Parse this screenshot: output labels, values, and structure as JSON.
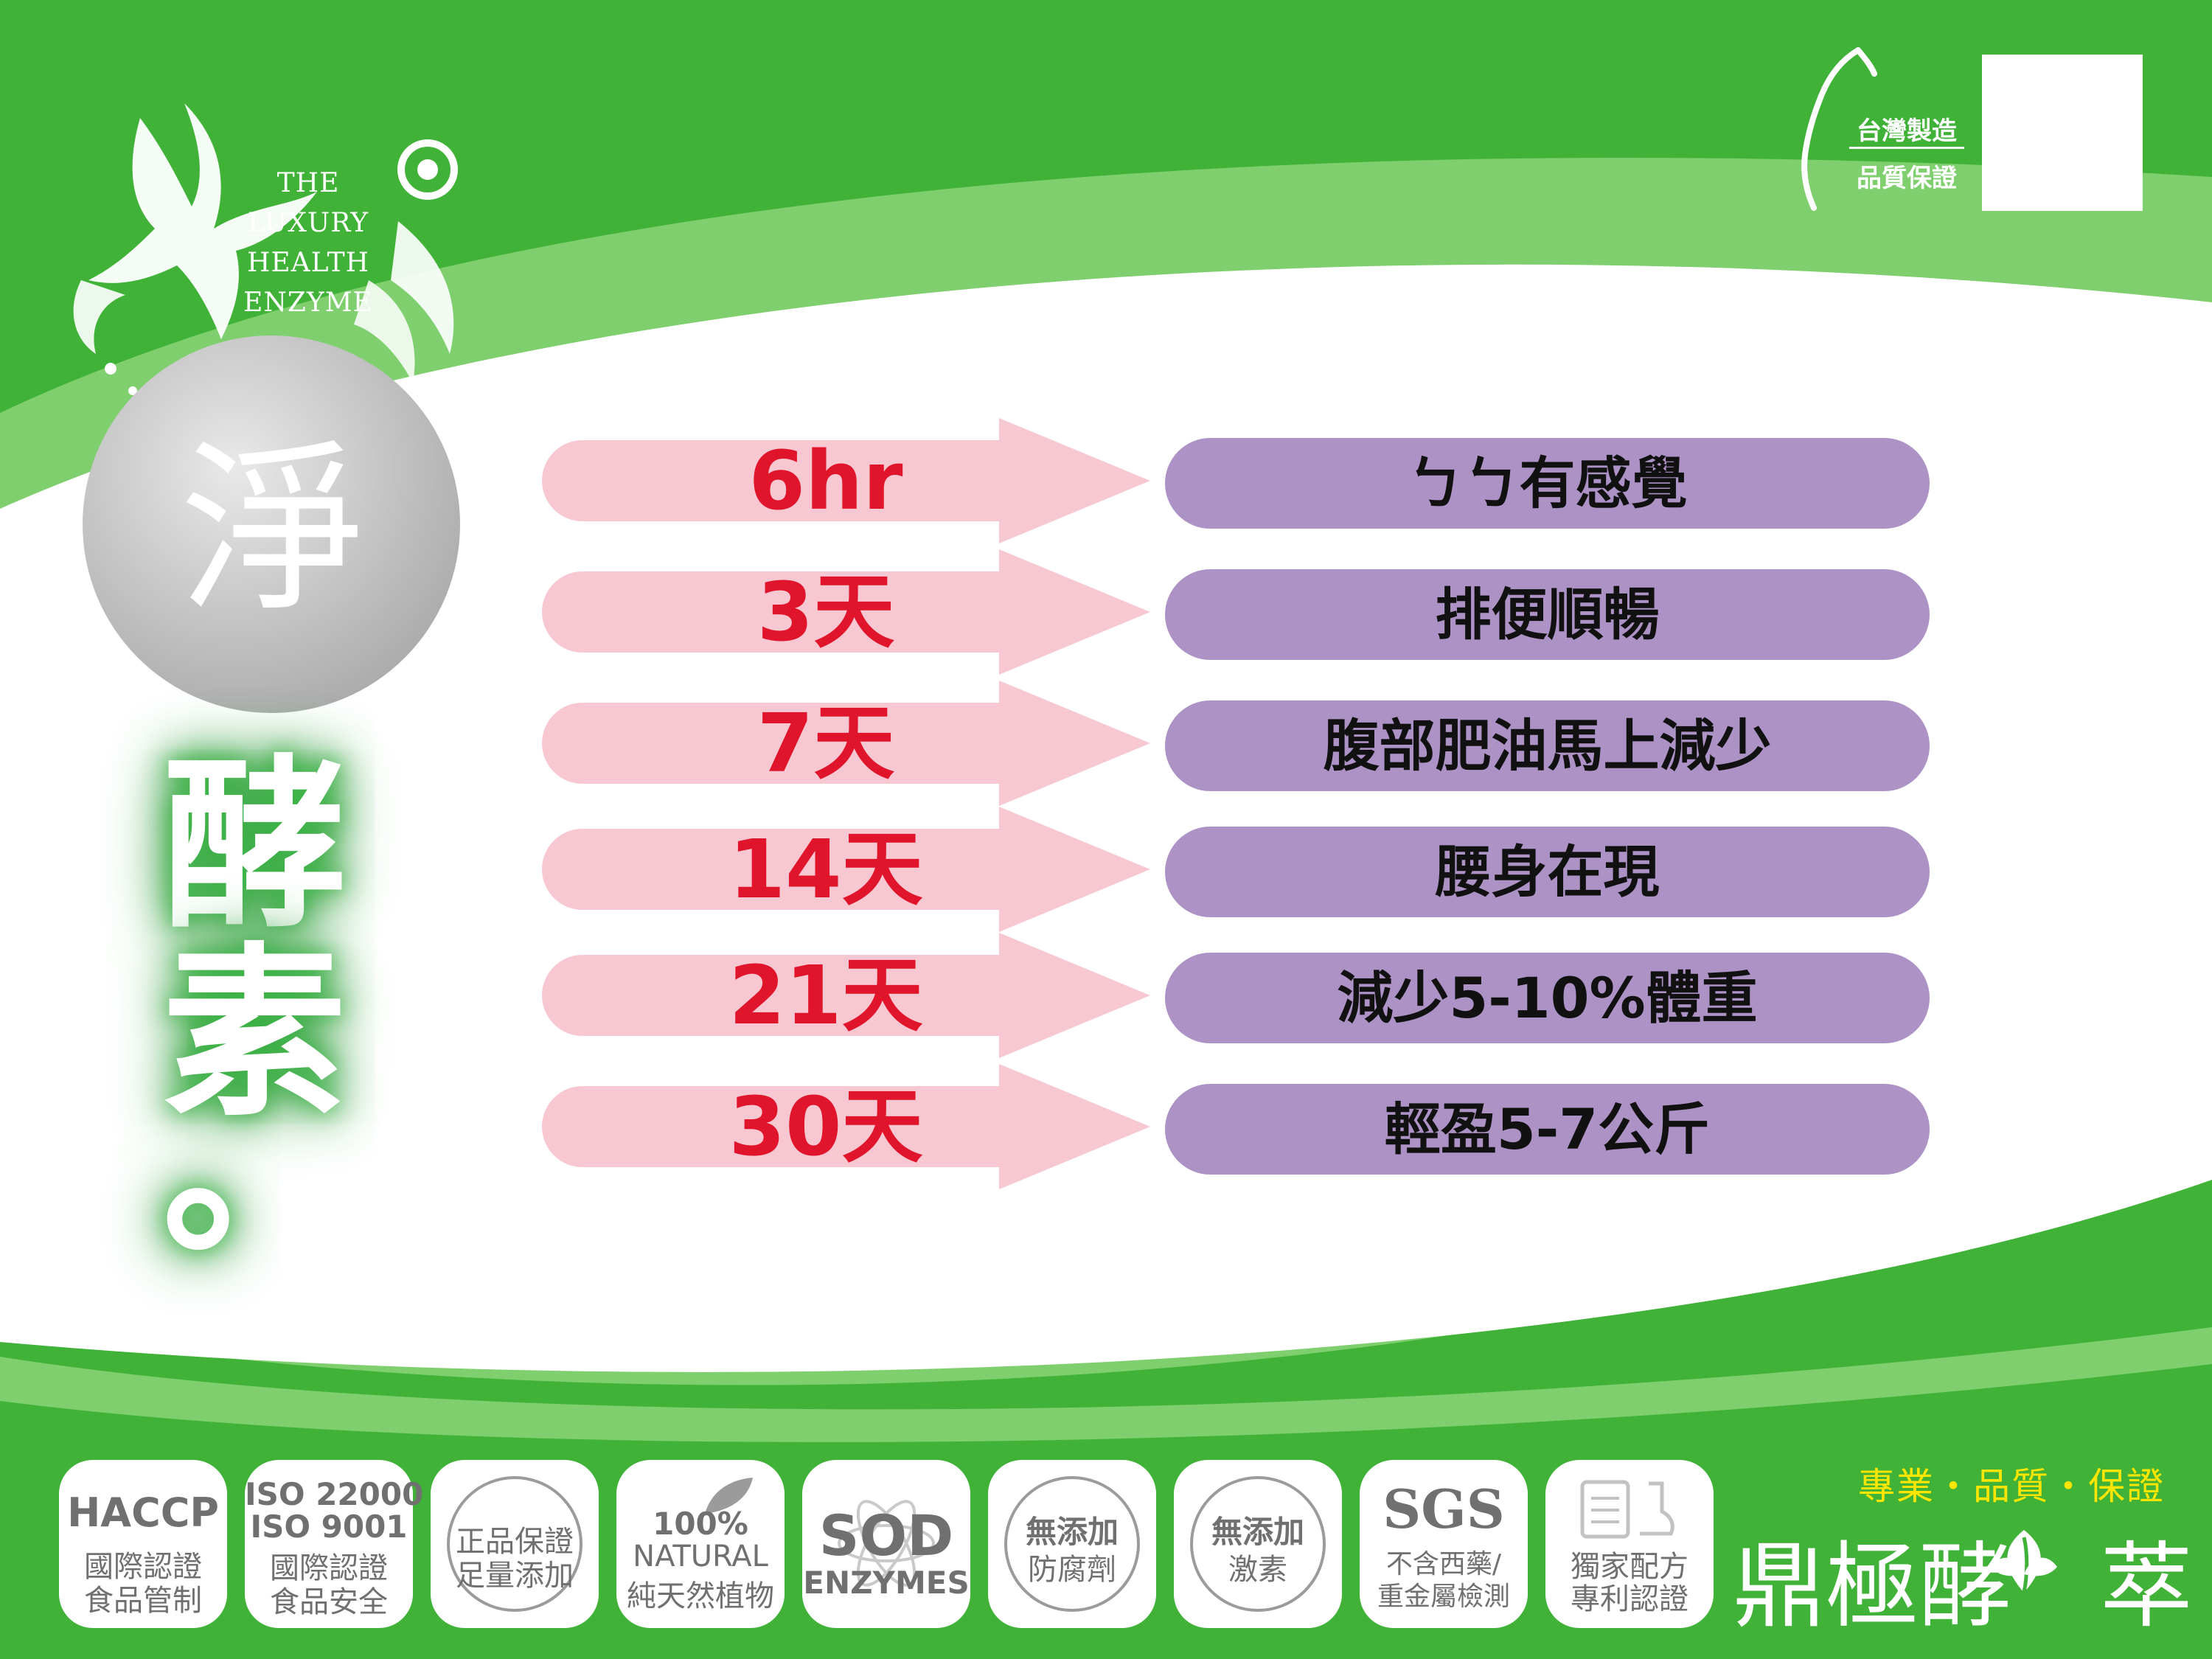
{
  "brand_block": {
    "lines": [
      "THE",
      "LUXURY",
      "HEALTH",
      "ENZYME"
    ],
    "circle_char": "淨",
    "vertical_text": [
      "酵",
      "素",
      "。"
    ]
  },
  "quality_mark": {
    "line1": "台灣製造",
    "line2": "品質保證"
  },
  "timeline": [
    {
      "time": "6hr",
      "effect": "ㄅㄅ有感覺"
    },
    {
      "time": "3天",
      "effect": "排便順暢"
    },
    {
      "time": "7天",
      "effect": "腹部肥油馬上減少"
    },
    {
      "time": "14天",
      "effect": "腰身在現"
    },
    {
      "time": "21天",
      "effect": "減少5-10%體重"
    },
    {
      "time": "30天",
      "effect": "輕盈5-7公斤"
    }
  ],
  "badges": [
    {
      "lines": [
        "HACCP",
        "國際認證",
        "食品管制"
      ]
    },
    {
      "lines": [
        "ISO 22000",
        "ISO 9001",
        "國際認證",
        "食品安全"
      ]
    },
    {
      "lines": [
        "正品保證",
        "足量添加"
      ]
    },
    {
      "lines": [
        "100%",
        "NATURAL",
        "純天然植物"
      ]
    },
    {
      "lines": [
        "SOD",
        "ENZYMES"
      ]
    },
    {
      "lines": [
        "無添加",
        "防腐劑"
      ]
    },
    {
      "lines": [
        "無添加",
        "激素"
      ]
    },
    {
      "lines": [
        "SGS",
        "不含西藥/",
        "重金屬檢測"
      ]
    },
    {
      "lines": [
        "獨家配方",
        "專利認證"
      ]
    }
  ],
  "footer": {
    "tagline": "專業・品質・保證",
    "brand_name_part1": "鼎極酵",
    "brand_name_part2": "萃"
  },
  "colors": {
    "green": "#3fb237",
    "light_green": "#7fcf6e",
    "arrow_pink": "#f8c8d2",
    "pill_purple": "#ad92c6",
    "time_red": "#e0142a",
    "tagline_yellow": "#ffe600"
  }
}
